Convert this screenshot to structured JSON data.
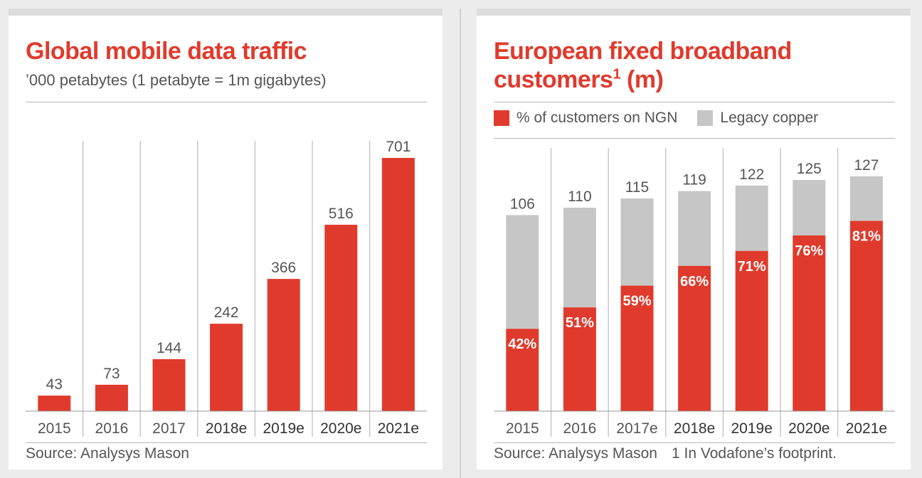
{
  "left": {
    "title": "Global mobile data traffic",
    "subtitle": "’000 petabytes (1 petabyte = 1m gigabytes)",
    "source": "Source: Analysys Mason"
  },
  "right": {
    "title_line1": "European fixed broadband",
    "title_line2": "customers",
    "title_sup": "1",
    "title_suffix": " (m)",
    "legend": [
      "% of customers on NGN",
      "Legacy copper"
    ],
    "source": "Source: Analysys Mason",
    "footnote": "1   In Vodafone’s footprint."
  },
  "colors": {
    "accent": "#e03a2c",
    "gray": "#c6c6c6"
  },
  "chart_data": [
    {
      "type": "bar",
      "title": "Global mobile data traffic",
      "subtitle": "’000 petabytes (1 petabyte = 1m gigabytes)",
      "categories": [
        "2015",
        "2016",
        "2017",
        "2018e",
        "2019e",
        "2020e",
        "2021e"
      ],
      "values": [
        43,
        73,
        144,
        242,
        366,
        516,
        701
      ],
      "data_labels": [
        "43",
        "73",
        "144",
        "242",
        "366",
        "516",
        "701"
      ],
      "ylim": [
        0,
        701
      ],
      "grid": "vertical separators"
    },
    {
      "type": "bar",
      "stacked": true,
      "title": "European fixed broadband customers¹ (m)",
      "categories": [
        "2015",
        "2016",
        "2017e",
        "2018e",
        "2019e",
        "2020e",
        "2021e"
      ],
      "totals": [
        106,
        110,
        115,
        119,
        122,
        125,
        127
      ],
      "ngn_percent": [
        42,
        51,
        59,
        66,
        71,
        76,
        81
      ],
      "series": [
        {
          "name": "% of customers on NGN",
          "values_percent": [
            42,
            51,
            59,
            66,
            71,
            76,
            81
          ]
        },
        {
          "name": "Legacy copper",
          "values_percent": [
            58,
            49,
            41,
            34,
            29,
            24,
            19
          ]
        }
      ],
      "total_labels": [
        "106",
        "110",
        "115",
        "119",
        "122",
        "125",
        "127"
      ],
      "ngn_labels": [
        "42%",
        "51%",
        "59%",
        "66%",
        "71%",
        "76%",
        "81%"
      ],
      "ylim": [
        0,
        127
      ],
      "legend": "top"
    }
  ]
}
